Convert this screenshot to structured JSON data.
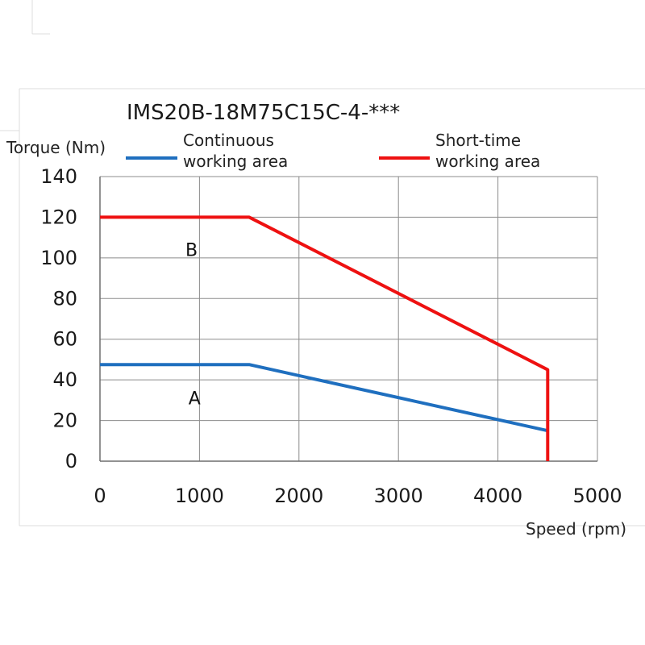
{
  "chart_data": {
    "type": "line",
    "title": "IMS20B-18M75C15C-4-***",
    "xlabel": "Speed (rpm)",
    "ylabel": "Torque (Nm)",
    "xlim": [
      0,
      5000
    ],
    "ylim": [
      0,
      140
    ],
    "xticks": [
      0,
      1000,
      2000,
      3000,
      4000,
      5000
    ],
    "yticks": [
      0,
      20,
      40,
      60,
      80,
      100,
      120,
      140
    ],
    "grid": true,
    "legend_position": "top",
    "series": [
      {
        "name": "Continuous working area",
        "color": "#1f6fbf",
        "x": [
          0,
          1500,
          4500
        ],
        "y": [
          47.5,
          47.5,
          15
        ]
      },
      {
        "name": "Short-time working area",
        "color": "#ee1111",
        "x": [
          0,
          1500,
          4500,
          4500
        ],
        "y": [
          120,
          120,
          45,
          0
        ]
      }
    ],
    "annotations": [
      {
        "text": "A",
        "x": 950,
        "y": 28
      },
      {
        "text": "B",
        "x": 920,
        "y": 101
      }
    ]
  }
}
